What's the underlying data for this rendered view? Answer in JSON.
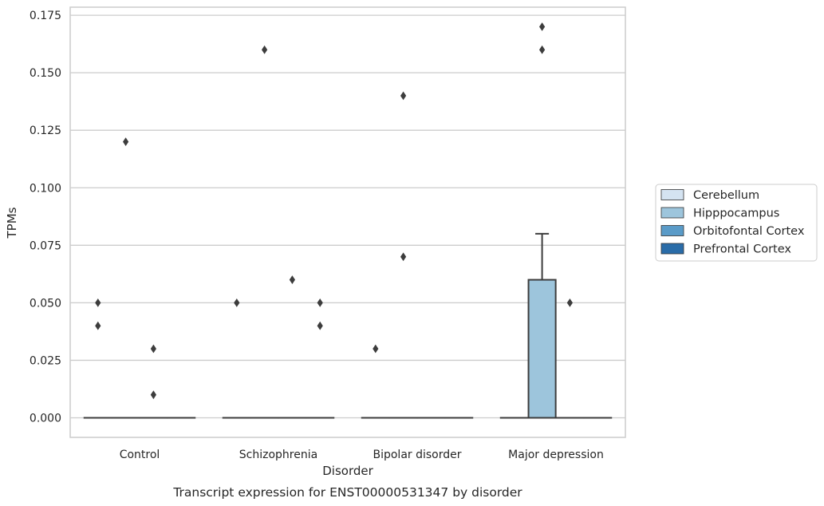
{
  "chart_data": {
    "type": "box",
    "title": "",
    "caption": "Transcript expression for ENST00000531347 by disorder",
    "xlabel": "Disorder",
    "ylabel": "TPMs",
    "ylim": [
      -0.0085,
      0.1785
    ],
    "yticks": [
      0.0,
      0.025,
      0.05,
      0.075,
      0.1,
      0.125,
      0.15,
      0.175
    ],
    "ytick_labels": [
      "0.000",
      "0.025",
      "0.050",
      "0.075",
      "0.100",
      "0.125",
      "0.150",
      "0.175"
    ],
    "grid": "horizontal",
    "legend_position": "right",
    "categories": [
      "Control",
      "Schizophrenia",
      "Bipolar disorder",
      "Major depression"
    ],
    "series": [
      {
        "name": "Cerebellum",
        "color": "#d4e3f1",
        "boxes": [
          {
            "q1": 0,
            "median": 0,
            "q3": 0,
            "whisker_low": 0,
            "whisker_high": 0,
            "outliers": [
              0.05,
              0.04
            ]
          },
          {
            "q1": 0,
            "median": 0,
            "q3": 0,
            "whisker_low": 0,
            "whisker_high": 0,
            "outliers": [
              0.05
            ]
          },
          {
            "q1": 0,
            "median": 0,
            "q3": 0,
            "whisker_low": 0,
            "whisker_high": 0,
            "outliers": [
              0.03
            ]
          },
          {
            "q1": 0,
            "median": 0,
            "q3": 0,
            "whisker_low": 0,
            "whisker_high": 0,
            "outliers": []
          }
        ]
      },
      {
        "name": "Hipppocampus",
        "color": "#9dc5dc",
        "boxes": [
          {
            "q1": 0,
            "median": 0,
            "q3": 0,
            "whisker_low": 0,
            "whisker_high": 0,
            "outliers": [
              0.12
            ]
          },
          {
            "q1": 0,
            "median": 0,
            "q3": 0,
            "whisker_low": 0,
            "whisker_high": 0,
            "outliers": [
              0.16
            ]
          },
          {
            "q1": 0,
            "median": 0,
            "q3": 0,
            "whisker_low": 0,
            "whisker_high": 0,
            "outliers": [
              0.14,
              0.07
            ]
          },
          {
            "q1": 0,
            "median": 0,
            "q3": 0.06,
            "whisker_low": 0,
            "whisker_high": 0.08,
            "outliers": [
              0.17,
              0.16
            ]
          }
        ]
      },
      {
        "name": "Orbitofontal Cortex",
        "color": "#5a9bc8",
        "boxes": [
          {
            "q1": 0,
            "median": 0,
            "q3": 0,
            "whisker_low": 0,
            "whisker_high": 0,
            "outliers": [
              0.03,
              0.01
            ]
          },
          {
            "q1": 0,
            "median": 0,
            "q3": 0,
            "whisker_low": 0,
            "whisker_high": 0,
            "outliers": [
              0.06
            ]
          },
          {
            "q1": 0,
            "median": 0,
            "q3": 0,
            "whisker_low": 0,
            "whisker_high": 0,
            "outliers": []
          },
          {
            "q1": 0,
            "median": 0,
            "q3": 0,
            "whisker_low": 0,
            "whisker_high": 0,
            "outliers": [
              0.05
            ]
          }
        ]
      },
      {
        "name": "Prefrontal Cortex",
        "color": "#2a6ca8",
        "boxes": [
          {
            "q1": 0,
            "median": 0,
            "q3": 0,
            "whisker_low": 0,
            "whisker_high": 0,
            "outliers": []
          },
          {
            "q1": 0,
            "median": 0,
            "q3": 0,
            "whisker_low": 0,
            "whisker_high": 0,
            "outliers": [
              0.05,
              0.04
            ]
          },
          {
            "q1": 0,
            "median": 0,
            "q3": 0,
            "whisker_low": 0,
            "whisker_high": 0,
            "outliers": []
          },
          {
            "q1": 0,
            "median": 0,
            "q3": 0,
            "whisker_low": 0,
            "whisker_high": 0,
            "outliers": []
          }
        ]
      }
    ]
  }
}
